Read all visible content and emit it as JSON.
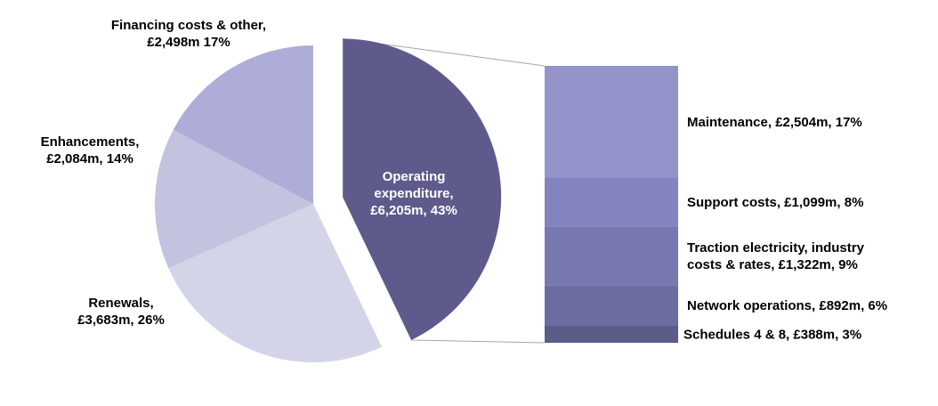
{
  "chart_data": [
    {
      "type": "pie",
      "title": "",
      "unit": "£m",
      "slices": [
        {
          "label_lines": [
            "Operating",
            "expenditure,",
            "£6,205m, 43%"
          ],
          "value": 6205,
          "percent": 43,
          "color": "#5e5b8c",
          "exploded": true
        },
        {
          "label_lines": [
            "Renewals,",
            "£3,683m, 26%"
          ],
          "value": 3683,
          "percent": 26,
          "color": "#d4d4e9"
        },
        {
          "label_lines": [
            "Enhancements,",
            "£2,084m, 14%"
          ],
          "value": 2084,
          "percent": 14,
          "color": "#c3c3e0"
        },
        {
          "label_lines": [
            "Financing costs & other,",
            "£2,498m 17%"
          ],
          "value": 2498,
          "percent": 17,
          "color": "#adadd7"
        }
      ]
    },
    {
      "type": "bar",
      "stacked": true,
      "title": "",
      "unit": "£m",
      "breakdown_of": "Operating expenditure",
      "segments": [
        {
          "label_lines": [
            "Maintenance, £2,504m, 17%"
          ],
          "value": 2504,
          "percent": 17,
          "color": "#9494cb"
        },
        {
          "label_lines": [
            "Support costs, £1,099m, 8%"
          ],
          "value": 1099,
          "percent": 8,
          "color": "#8383c0"
        },
        {
          "label_lines": [
            "Traction electricity, industry",
            "costs & rates, £1,322m, 9%"
          ],
          "value": 1322,
          "percent": 9,
          "color": "#7878b0"
        },
        {
          "label_lines": [
            "Network operations, £892m, 6%"
          ],
          "value": 892,
          "percent": 6,
          "color": "#6c6ca0"
        },
        {
          "label_lines": [
            "Schedules 4 & 8, £388m, 3%"
          ],
          "value": 388,
          "percent": 3,
          "color": "#5c5c88"
        }
      ]
    }
  ]
}
